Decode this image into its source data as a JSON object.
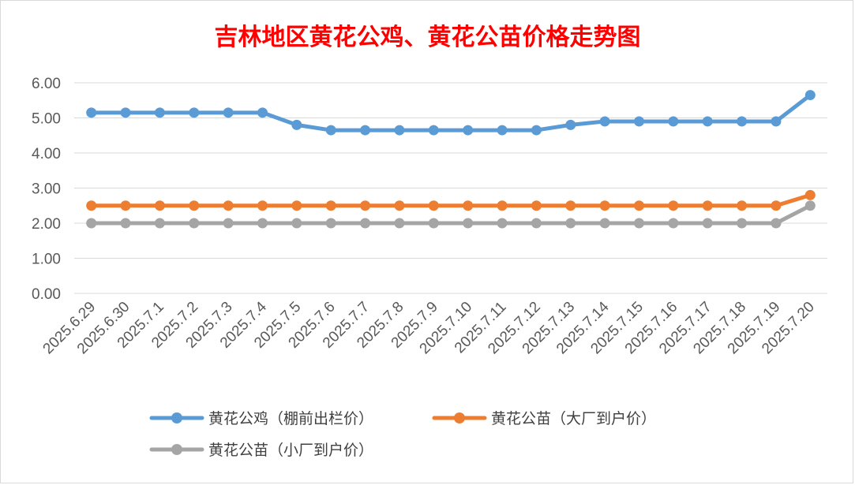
{
  "chart_data": {
    "type": "line",
    "title": "吉林地区黄花公鸡、黄花公苗价格走势图",
    "xlabel": "",
    "ylabel": "",
    "categories": [
      "2025.6.29",
      "2025.6.30",
      "2025.7.1",
      "2025.7.2",
      "2025.7.3",
      "2025.7.4",
      "2025.7.5",
      "2025.7.6",
      "2025.7.7",
      "2025.7.8",
      "2025.7.9",
      "2025.7.10",
      "2025.7.11",
      "2025.7.12",
      "2025.7.13",
      "2025.7.14",
      "2025.7.15",
      "2025.7.16",
      "2025.7.17",
      "2025.7.18",
      "2025.7.19",
      "2025.7.20"
    ],
    "ylim": [
      0,
      6
    ],
    "yticks": [
      "0.00",
      "1.00",
      "2.00",
      "3.00",
      "4.00",
      "5.00",
      "6.00"
    ],
    "grid": true,
    "legend_position": "bottom",
    "series": [
      {
        "name": "黄花公鸡（棚前出栏价）",
        "color": "#5b9bd5",
        "values": [
          5.15,
          5.15,
          5.15,
          5.15,
          5.15,
          5.15,
          4.8,
          4.65,
          4.65,
          4.65,
          4.65,
          4.65,
          4.65,
          4.65,
          4.8,
          4.9,
          4.9,
          4.9,
          4.9,
          4.9,
          4.9,
          5.65
        ]
      },
      {
        "name": "黄花公苗（大厂到户价）",
        "color": "#ed7d31",
        "values": [
          2.5,
          2.5,
          2.5,
          2.5,
          2.5,
          2.5,
          2.5,
          2.5,
          2.5,
          2.5,
          2.5,
          2.5,
          2.5,
          2.5,
          2.5,
          2.5,
          2.5,
          2.5,
          2.5,
          2.5,
          2.5,
          2.8
        ]
      },
      {
        "name": "黄花公苗（小厂到户价）",
        "color": "#a5a5a5",
        "values": [
          2.0,
          2.0,
          2.0,
          2.0,
          2.0,
          2.0,
          2.0,
          2.0,
          2.0,
          2.0,
          2.0,
          2.0,
          2.0,
          2.0,
          2.0,
          2.0,
          2.0,
          2.0,
          2.0,
          2.0,
          2.0,
          2.5
        ]
      }
    ]
  }
}
